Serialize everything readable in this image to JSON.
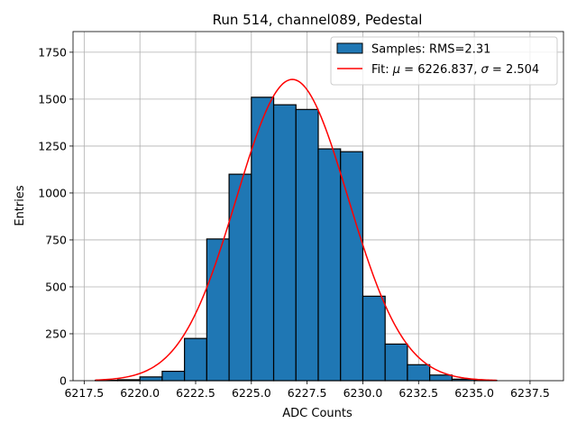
{
  "chart_data": {
    "type": "bar",
    "title": "Run 514, channel089, Pedestal",
    "xlabel": "ADC Counts",
    "ylabel": "Entries",
    "xlim": [
      6217.0,
      6239.0
    ],
    "ylim": [
      0,
      1860
    ],
    "grid": true,
    "legend_position": "top-right",
    "x_ticks": [
      6217.5,
      6220.0,
      6222.5,
      6225.0,
      6227.5,
      6230.0,
      6232.5,
      6235.0,
      6237.5
    ],
    "x_tick_labels": [
      "6217.5",
      "6220.0",
      "6222.5",
      "6225.0",
      "6227.5",
      "6230.0",
      "6232.5",
      "6235.0",
      "6237.5"
    ],
    "y_ticks": [
      0,
      250,
      500,
      750,
      1000,
      1250,
      1500,
      1750
    ],
    "y_tick_labels": [
      "0",
      "250",
      "500",
      "750",
      "1000",
      "1250",
      "1500",
      "1750"
    ],
    "histogram": {
      "name": "Samples: RMS=2.31",
      "color": "#1f77b4",
      "edge_color": "#000000",
      "bin_edges": [
        6218,
        6219,
        6220,
        6221,
        6222,
        6223,
        6224,
        6225,
        6226,
        6227,
        6228,
        6229,
        6230,
        6231,
        6232,
        6233,
        6234,
        6235,
        6236
      ],
      "counts": [
        2,
        5,
        20,
        50,
        225,
        755,
        1100,
        1510,
        1470,
        1445,
        1235,
        1220,
        450,
        195,
        85,
        30,
        8,
        2
      ]
    },
    "fit": {
      "name_prefix": "Fit: ",
      "mu_symbol": "μ",
      "sigma_symbol": "σ",
      "mu_value": "6226.837",
      "sigma_value": "2.504",
      "color": "#ff0000",
      "mu": 6226.837,
      "sigma": 2.504,
      "amplitude": 1605,
      "x_range": [
        6218,
        6236
      ]
    }
  }
}
